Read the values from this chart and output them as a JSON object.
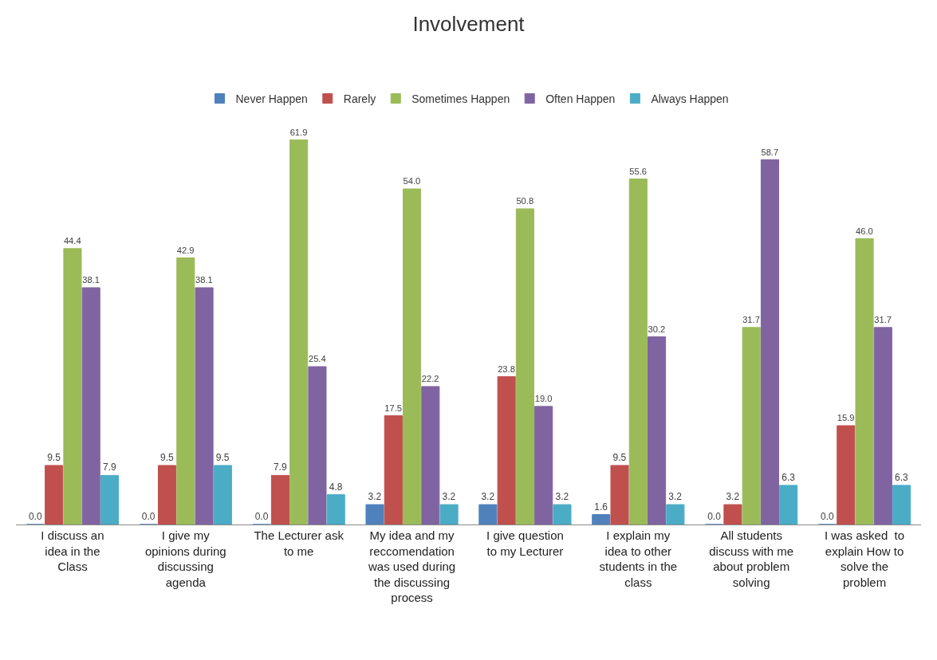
{
  "chart_data": {
    "type": "bar",
    "title": "Involvement",
    "categories": [
      "I discuss an idea in the Class",
      "I give my opinions during discussing agenda",
      "The Lecturer ask to me",
      "My idea and my reccomendation was used during the discussing process",
      "I give question to my Lecturer",
      "I explain my idea to other students in the class",
      "All students discuss with me about problem solving",
      "I was asked  to explain How to solve the problem"
    ],
    "series": [
      {
        "name": "Never Happen",
        "color": "#4f81bd",
        "values": [
          0.0,
          0.0,
          0.0,
          3.2,
          3.2,
          1.6,
          0.0,
          0.0
        ],
        "value_labels": [
          "0.0",
          "0.0",
          "0.0",
          "3.2",
          "3.2",
          "1.6",
          "0.0",
          "0.0"
        ]
      },
      {
        "name": "Rarely",
        "color": "#c0504d",
        "values": [
          9.5,
          9.5,
          7.9,
          17.5,
          23.8,
          9.5,
          3.2,
          15.9
        ],
        "value_labels": [
          "9.5",
          "9.5",
          "7.9",
          "17.5",
          "23.8",
          "9.5",
          "3.2",
          "15.9"
        ]
      },
      {
        "name": "Sometimes Happen",
        "color": "#9bbb59",
        "values": [
          44.4,
          42.9,
          61.9,
          54.0,
          50.8,
          55.6,
          31.7,
          46.0
        ],
        "value_labels": [
          "44.4",
          "42.9",
          "61.9",
          "54.0",
          "50.8",
          "55.6",
          "31.7",
          "46.0"
        ]
      },
      {
        "name": "Often Happen",
        "color": "#8064a2",
        "values": [
          38.1,
          38.1,
          25.4,
          22.2,
          19.0,
          30.2,
          58.7,
          31.7
        ],
        "value_labels": [
          "38.1",
          "38.1",
          "25.4",
          "22.2",
          "19.0",
          "30.2",
          "58.7",
          "31.7"
        ]
      },
      {
        "name": "Always Happen",
        "color": "#4bacc6",
        "values": [
          7.9,
          9.5,
          4.8,
          3.2,
          3.2,
          3.2,
          6.3,
          6.3
        ],
        "value_labels": [
          "7.9",
          "9.5",
          "4.8",
          "3.2",
          "3.2",
          "3.2",
          "6.3",
          "6.3"
        ]
      }
    ],
    "legend": "top",
    "tick_labels": "x"
  }
}
